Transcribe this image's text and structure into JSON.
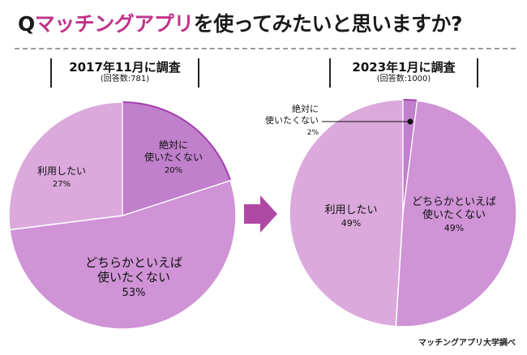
{
  "title": {
    "prefix": "Q",
    "highlight": "マッチングアプリ",
    "rest": "を使ってみたいと思いますか?"
  },
  "colors": {
    "title_accent": "#c0338a",
    "slice_light": "#dba9dc",
    "slice_mid": "#cf93d6",
    "slice_dark": "#c080cb",
    "slice_border": "#a33fae",
    "arrow": "#b049a6"
  },
  "source": "マッチングアプリ大学調べ",
  "chart_data": [
    {
      "type": "pie",
      "period": "2017年11月に調査",
      "sample": "(回答数:781)",
      "slices": [
        {
          "label": [
            "絶対に",
            "使いたくない"
          ],
          "value": 20,
          "value_label": "20%",
          "color": "#c080cb",
          "highlight": true
        },
        {
          "label": [
            "どちらかといえば",
            "使いたくない"
          ],
          "value": 53,
          "value_label": "53%",
          "color": "#cf93d6"
        },
        {
          "label": [
            "利用したい"
          ],
          "value": 27,
          "value_label": "27%",
          "color": "#dba9dc"
        }
      ]
    },
    {
      "type": "pie",
      "period": "2023年1月に調査",
      "sample": "(回答数:1000)",
      "slices": [
        {
          "label": [
            "絶対に",
            "使いたくない"
          ],
          "value": 2,
          "value_label": "2%",
          "color": "#c080cb",
          "highlight": true
        },
        {
          "label": [
            "どちらかといえば",
            "使いたくない"
          ],
          "value": 49,
          "value_label": "49%",
          "color": "#cf93d6"
        },
        {
          "label": [
            "利用したい"
          ],
          "value": 49,
          "value_label": "49%",
          "color": "#dba9dc"
        }
      ]
    }
  ]
}
